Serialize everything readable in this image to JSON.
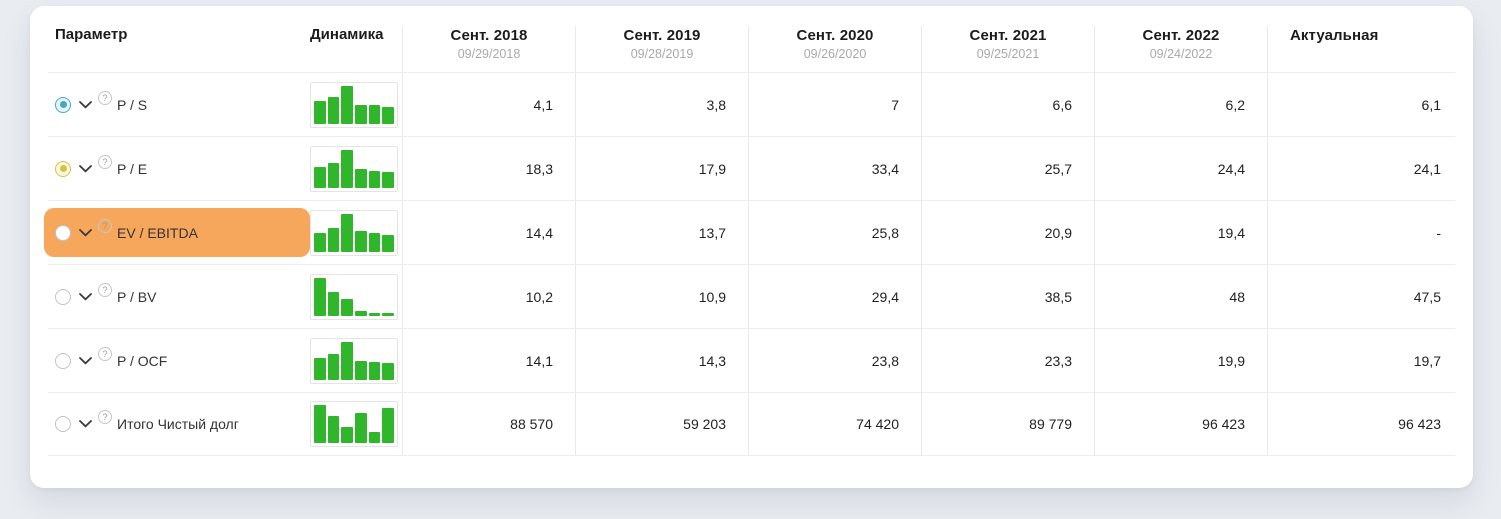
{
  "colors": {
    "bar_green": "#2fb62a",
    "highlight_orange": "#f7a75c",
    "radio_blue": "#45a8c0",
    "radio_yellow": "#d8c33e",
    "radio_unselected": "#c2c2c2"
  },
  "table": {
    "param_header": "Параметр",
    "dynamics_header": "Динамика",
    "help_icon": "?",
    "columns": [
      {
        "label": "Сент. 2018",
        "date": "09/29/2018"
      },
      {
        "label": "Сент. 2019",
        "date": "09/28/2019"
      },
      {
        "label": "Сент. 2020",
        "date": "09/26/2020"
      },
      {
        "label": "Сент. 2021",
        "date": "09/25/2021"
      },
      {
        "label": "Сент. 2022",
        "date": "09/24/2022"
      },
      {
        "label": "Актуальная",
        "date": ""
      }
    ],
    "rows": [
      {
        "param": "P / S",
        "radio_selected": true,
        "radio_color": "#45a8c0",
        "highlighted": false,
        "spark": [
          0.6,
          0.7,
          1,
          0.5,
          0.5,
          0.45
        ],
        "values": [
          "4,1",
          "3,8",
          "7",
          "6,6",
          "6,2",
          "6,1"
        ]
      },
      {
        "param": "P / E",
        "radio_selected": true,
        "radio_color": "#d8c33e",
        "highlighted": false,
        "spark": [
          0.55,
          0.65,
          1,
          0.5,
          0.46,
          0.42
        ],
        "values": [
          "18,3",
          "17,9",
          "33,4",
          "25,7",
          "24,4",
          "24,1"
        ]
      },
      {
        "param": "EV / EBITDA",
        "radio_selected": false,
        "radio_color": "",
        "highlighted": true,
        "spark": [
          0.5,
          0.62,
          1,
          0.55,
          0.5,
          0.45
        ],
        "values": [
          "14,4",
          "13,7",
          "25,8",
          "20,9",
          "19,4",
          "-"
        ]
      },
      {
        "param": "P / BV",
        "radio_selected": false,
        "radio_color": "",
        "highlighted": false,
        "spark": [
          1,
          0.62,
          0.45,
          0.12,
          0.09,
          0.07
        ],
        "values": [
          "10,2",
          "10,9",
          "29,4",
          "38,5",
          "48",
          "47,5"
        ]
      },
      {
        "param": "P / OCF",
        "radio_selected": false,
        "radio_color": "",
        "highlighted": false,
        "spark": [
          0.58,
          0.68,
          1,
          0.5,
          0.48,
          0.44
        ],
        "values": [
          "14,1",
          "14,3",
          "23,8",
          "23,3",
          "19,9",
          "19,7"
        ]
      },
      {
        "param": "Итого Чистый долг",
        "radio_selected": false,
        "radio_color": "",
        "highlighted": false,
        "spark": [
          1,
          0.7,
          0.42,
          0.78,
          0.3,
          0.92
        ],
        "values": [
          "88 570",
          "59 203",
          "74 420",
          "89 779",
          "96 423",
          "96 423"
        ]
      }
    ]
  }
}
